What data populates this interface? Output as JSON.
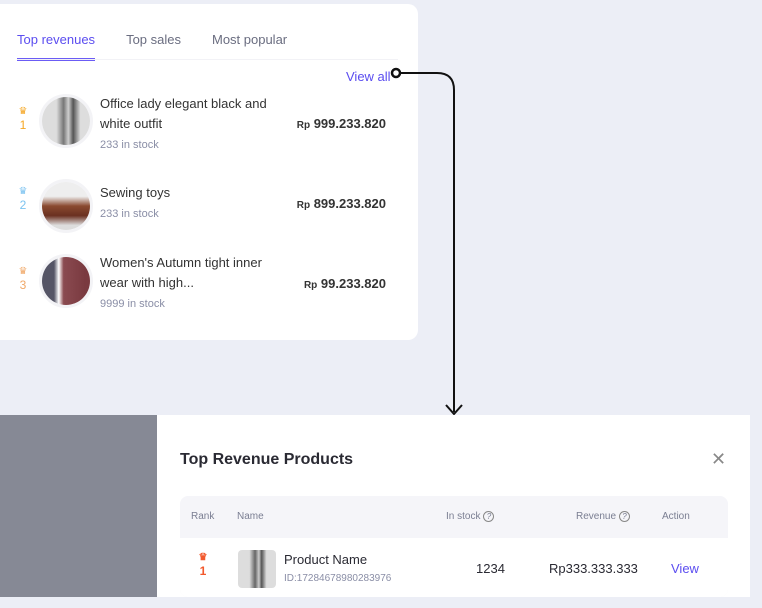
{
  "widget": {
    "tabs": [
      {
        "label": "Top revenues",
        "active": true
      },
      {
        "label": "Top sales"
      },
      {
        "label": "Most popular"
      }
    ],
    "view_all": "View all",
    "items": [
      {
        "rank": "1",
        "rank_color": "#f5a623",
        "name": "Office lady elegant black and white outfit",
        "stock": "233 in stock",
        "currency": "Rp",
        "price": "999.233.820"
      },
      {
        "rank": "2",
        "rank_color": "#7cc3f0",
        "name": "Sewing toys",
        "stock": "233 in stock",
        "currency": "Rp",
        "price": "899.233.820"
      },
      {
        "rank": "3",
        "rank_color": "#f0a868",
        "name": "Women's Autumn tight inner wear with high...",
        "stock": "9999 in stock",
        "currency": "Rp",
        "price": "99.233.820"
      }
    ]
  },
  "modal": {
    "title": "Top Revenue Products",
    "close_icon": "close-icon",
    "columns": {
      "rank": "Rank",
      "name": "Name",
      "stock": "In stock",
      "revenue": "Revenue",
      "action": "Action"
    },
    "rows": [
      {
        "rank": "1",
        "name": "Product Name",
        "id": "ID:17284678980283976",
        "stock": "1234",
        "revenue": "Rp333.333.333",
        "action": "View"
      }
    ]
  },
  "colors": {
    "accent": "#5b4df0",
    "gold": "#f5a623",
    "rank1_modal": "#f2582c"
  }
}
